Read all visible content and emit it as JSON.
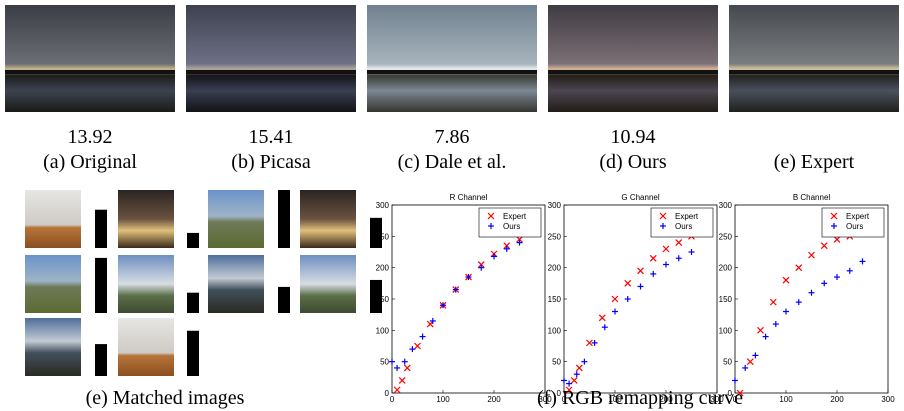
{
  "photos": [
    {
      "score": 13.92,
      "caption": "(a) Original"
    },
    {
      "score": 15.41,
      "caption": "(b) Picasa"
    },
    {
      "score": 7.86,
      "caption": "(c) Dale et al."
    },
    {
      "score": 10.94,
      "caption": "(d) Ours"
    },
    {
      "caption": "(e) Expert"
    }
  ],
  "matched": {
    "caption": "(e) Matched images",
    "columns": [
      {
        "bars": [
          0.66,
          0.95,
          0.55
        ]
      },
      {
        "bars": [
          0.26,
          0.35,
          0.78
        ]
      },
      {
        "bars": [
          1.0,
          0.45
        ]
      },
      {
        "bars": [
          0.52,
          0.57
        ]
      }
    ]
  },
  "curve_caption": "(f) RGB remapping curve",
  "chart_data": [
    {
      "type": "scatter",
      "title": "R Channel",
      "xlim": [
        0,
        300
      ],
      "ylim": [
        0,
        300
      ],
      "xticks": [
        0,
        100,
        200,
        300
      ],
      "yticks": [
        0,
        50,
        100,
        150,
        200,
        250,
        300
      ],
      "legend": "upper right",
      "series": [
        {
          "name": "Expert",
          "color": "#ff0000",
          "marker": "x",
          "x": [
            10,
            20,
            30,
            50,
            75,
            100,
            125,
            150,
            175,
            200,
            225,
            250
          ],
          "values": [
            5,
            20,
            40,
            75,
            110,
            140,
            165,
            185,
            205,
            222,
            235,
            245
          ]
        },
        {
          "name": "Ours",
          "color": "#0000ff",
          "marker": "+",
          "x": [
            0,
            10,
            25,
            40,
            60,
            80,
            100,
            125,
            150,
            175,
            200,
            225,
            250
          ],
          "values": [
            50,
            40,
            50,
            70,
            90,
            115,
            140,
            165,
            185,
            200,
            218,
            230,
            240
          ]
        }
      ]
    },
    {
      "type": "scatter",
      "title": "G Channel",
      "xlim": [
        0,
        300
      ],
      "ylim": [
        0,
        300
      ],
      "xticks": [
        0,
        100,
        200,
        300
      ],
      "yticks": [
        0,
        50,
        100,
        150,
        200,
        250,
        300
      ],
      "legend": "upper right",
      "series": [
        {
          "name": "Expert",
          "color": "#ff0000",
          "marker": "x",
          "x": [
            10,
            20,
            30,
            50,
            75,
            100,
            125,
            150,
            175,
            200,
            225,
            250
          ],
          "values": [
            5,
            20,
            40,
            80,
            120,
            150,
            175,
            195,
            215,
            230,
            240,
            250
          ]
        },
        {
          "name": "Ours",
          "color": "#0000ff",
          "marker": "+",
          "x": [
            0,
            10,
            25,
            40,
            60,
            80,
            100,
            125,
            150,
            175,
            200,
            225,
            250
          ],
          "values": [
            20,
            15,
            30,
            50,
            80,
            105,
            130,
            150,
            170,
            190,
            205,
            215,
            225
          ]
        }
      ]
    },
    {
      "type": "scatter",
      "title": "B Channel",
      "xlim": [
        0,
        300
      ],
      "ylim": [
        0,
        300
      ],
      "xticks": [
        0,
        100,
        200,
        300
      ],
      "yticks": [
        0,
        50,
        100,
        150,
        200,
        250,
        300
      ],
      "legend": "upper right",
      "series": [
        {
          "name": "Expert",
          "color": "#ff0000",
          "marker": "x",
          "x": [
            10,
            30,
            50,
            75,
            100,
            125,
            150,
            175,
            200,
            225,
            250
          ],
          "values": [
            0,
            50,
            100,
            145,
            180,
            200,
            220,
            235,
            245,
            250,
            255
          ]
        },
        {
          "name": "Ours",
          "color": "#0000ff",
          "marker": "+",
          "x": [
            0,
            20,
            40,
            60,
            80,
            100,
            125,
            150,
            175,
            200,
            225,
            250
          ],
          "values": [
            20,
            40,
            60,
            90,
            110,
            130,
            145,
            160,
            175,
            185,
            195,
            210
          ]
        }
      ]
    }
  ]
}
